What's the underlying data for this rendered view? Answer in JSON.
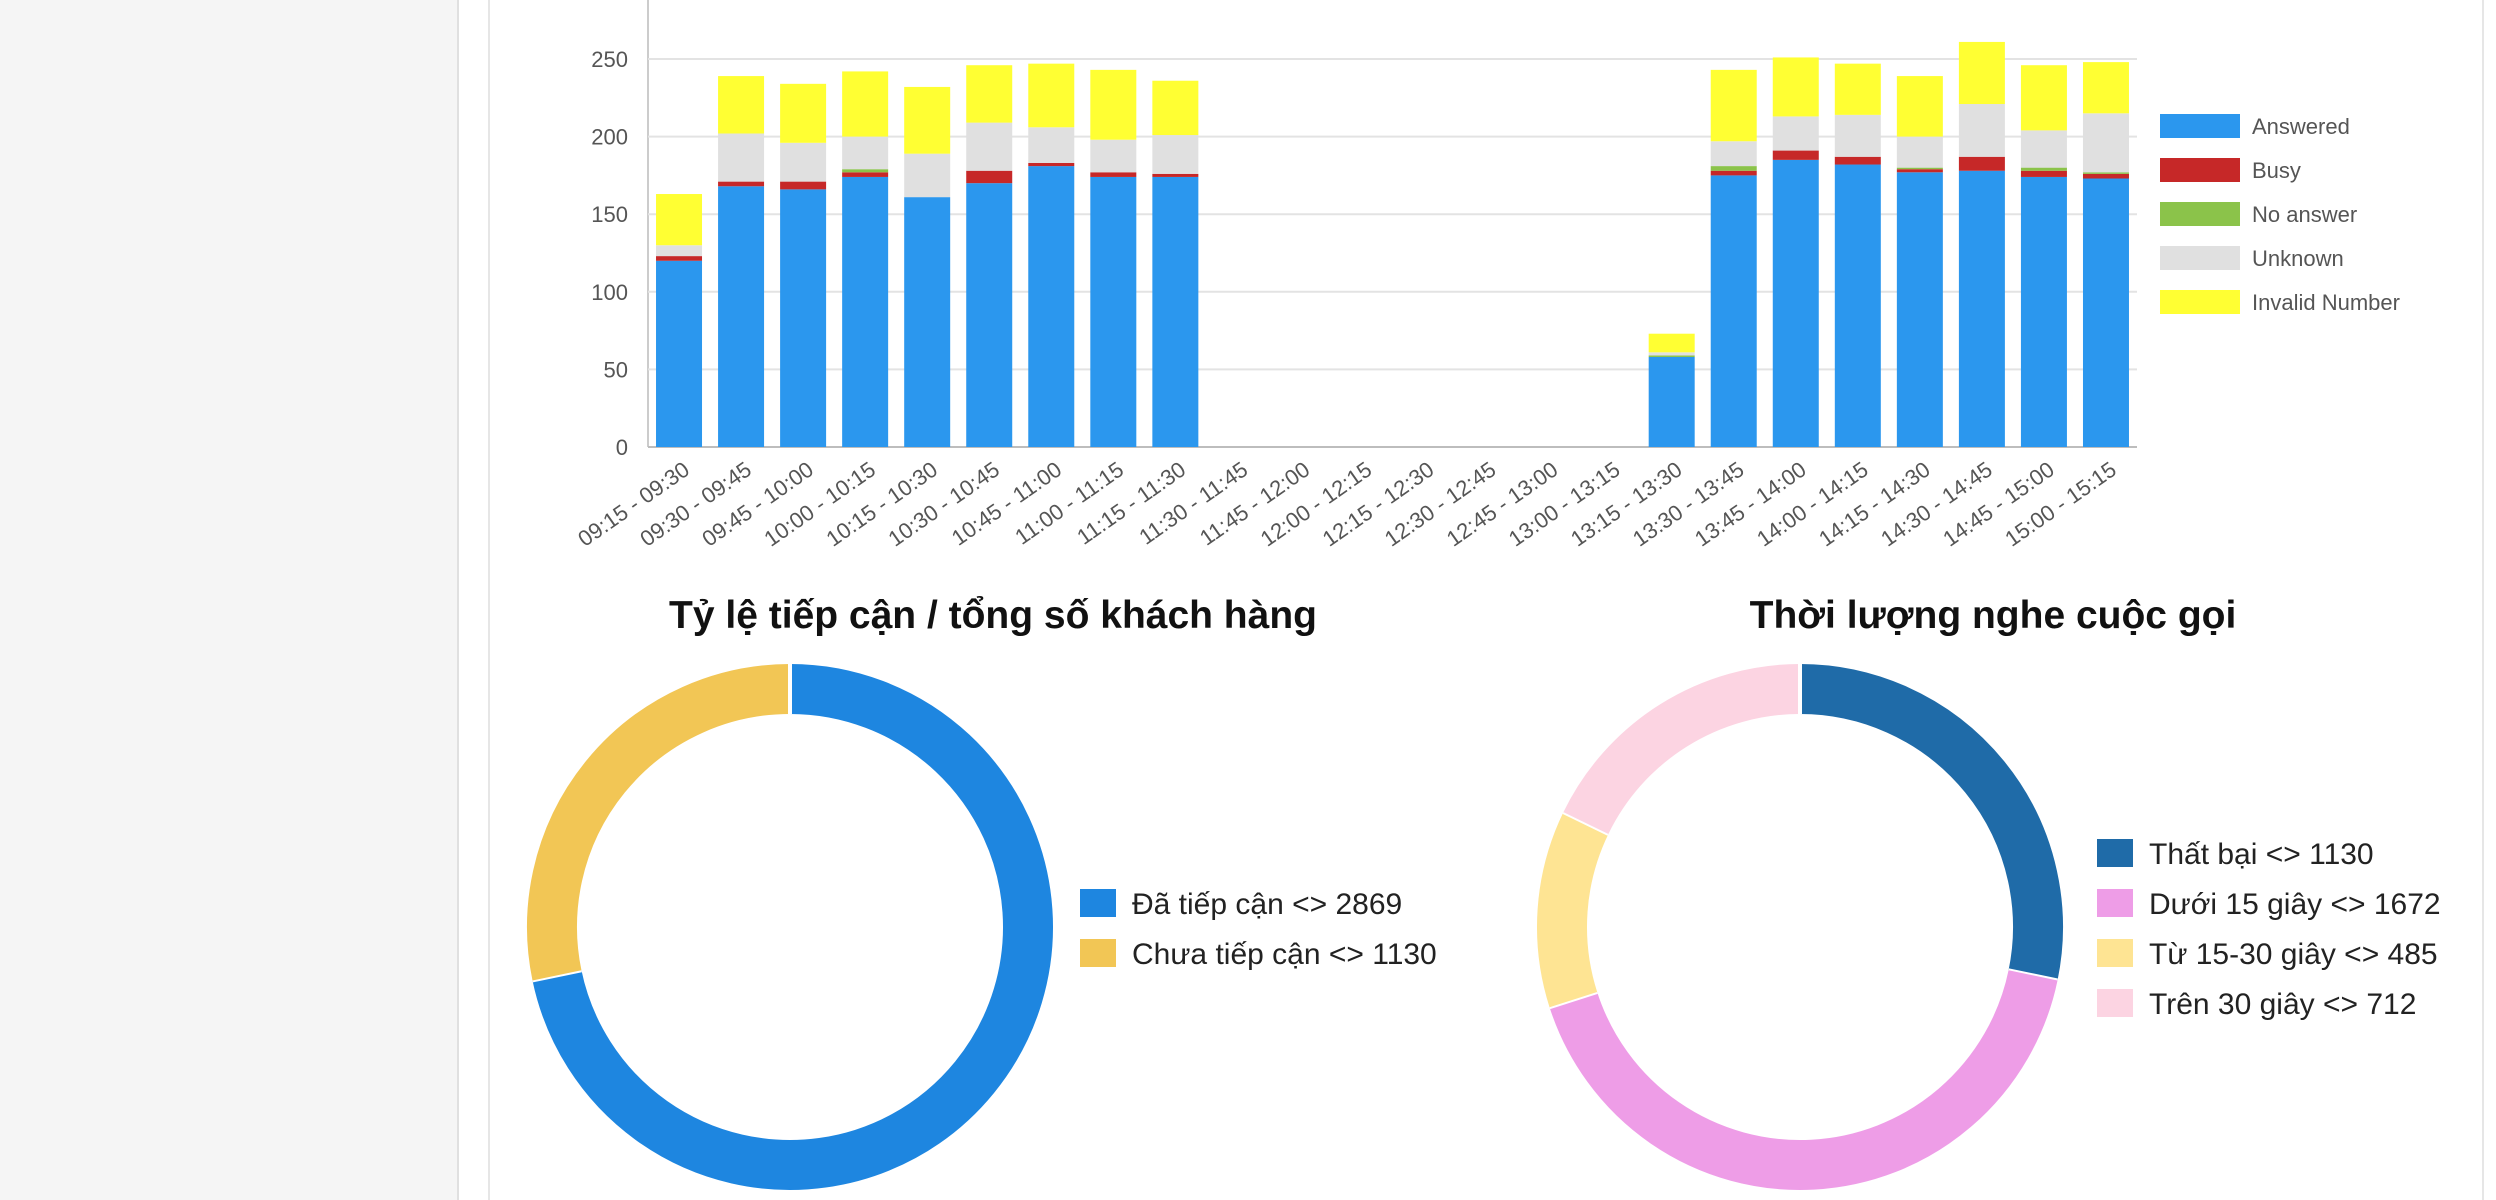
{
  "chart_data": [
    {
      "type": "bar",
      "stacked": true,
      "title": "",
      "xlabel": "",
      "ylabel": "",
      "ylim": [
        0,
        275
      ],
      "yticks": [
        0,
        50,
        100,
        150,
        200,
        250
      ],
      "grid": true,
      "legend_position": "right",
      "categories": [
        "09:15 - 09:30",
        "09:30 - 09:45",
        "09:45 - 10:00",
        "10:00 - 10:15",
        "10:15 - 10:30",
        "10:30 - 10:45",
        "10:45 - 11:00",
        "11:00 - 11:15",
        "11:15 - 11:30",
        "11:30 - 11:45",
        "11:45 - 12:00",
        "12:00 - 12:15",
        "12:15 - 12:30",
        "12:30 - 12:45",
        "12:45 - 13:00",
        "13:00 - 13:15",
        "13:15 - 13:30",
        "13:30 - 13:45",
        "13:45 - 14:00",
        "14:00 - 14:15",
        "14:15 - 14:30",
        "14:30 - 14:45",
        "14:45 - 15:00",
        "15:00 - 15:15"
      ],
      "series": [
        {
          "name": "Answered",
          "color": "#2b97ee",
          "values": [
            120,
            168,
            166,
            174,
            161,
            170,
            181,
            174,
            174,
            0,
            0,
            0,
            0,
            0,
            0,
            0,
            58,
            175,
            185,
            182,
            177,
            178,
            174,
            173
          ]
        },
        {
          "name": "Busy",
          "color": "#c62828",
          "values": [
            3,
            3,
            5,
            3,
            0,
            8,
            2,
            3,
            2,
            0,
            0,
            0,
            0,
            0,
            0,
            0,
            0,
            3,
            6,
            5,
            2,
            9,
            4,
            3
          ]
        },
        {
          "name": "No answer",
          "color": "#8bc34a",
          "values": [
            0,
            0,
            0,
            2,
            0,
            0,
            0,
            0,
            0,
            0,
            0,
            0,
            0,
            0,
            0,
            0,
            1,
            3,
            0,
            0,
            1,
            0,
            2,
            1
          ]
        },
        {
          "name": "Unknown",
          "color": "#e0e0e0",
          "values": [
            7,
            31,
            25,
            21,
            28,
            31,
            23,
            21,
            25,
            0,
            0,
            0,
            0,
            0,
            0,
            0,
            2,
            16,
            22,
            27,
            20,
            34,
            24,
            38
          ]
        },
        {
          "name": "Invalid Number",
          "color": "#ffff33",
          "values": [
            33,
            37,
            38,
            42,
            43,
            37,
            41,
            45,
            35,
            0,
            0,
            0,
            0,
            0,
            0,
            0,
            12,
            46,
            38,
            33,
            39,
            40,
            42,
            33
          ]
        }
      ]
    },
    {
      "type": "pie",
      "donut": true,
      "title": "Tỷ lệ tiếp cận / tổng số khách hàng",
      "legend_position": "right",
      "slices": [
        {
          "label": "Đã tiếp cận <> 2869",
          "value": 2869,
          "color": "#1e86e0"
        },
        {
          "label": "Chưa tiếp cận <> 1130",
          "value": 1130,
          "color": "#f2c655"
        }
      ]
    },
    {
      "type": "pie",
      "donut": true,
      "title": "Thời lượng nghe cuộc gọi",
      "legend_position": "right",
      "slices": [
        {
          "label": "Thất bại <> 1130",
          "value": 1130,
          "color": "#1f6ba8"
        },
        {
          "label": "Dưới 15 giây <> 1672",
          "value": 1672,
          "color": "#ee9de7"
        },
        {
          "label": "Từ 15-30 giây <> 485",
          "value": 485,
          "color": "#fee493"
        },
        {
          "label": "Trên 30 giây <> 712",
          "value": 712,
          "color": "#fcd4e2"
        }
      ]
    }
  ]
}
